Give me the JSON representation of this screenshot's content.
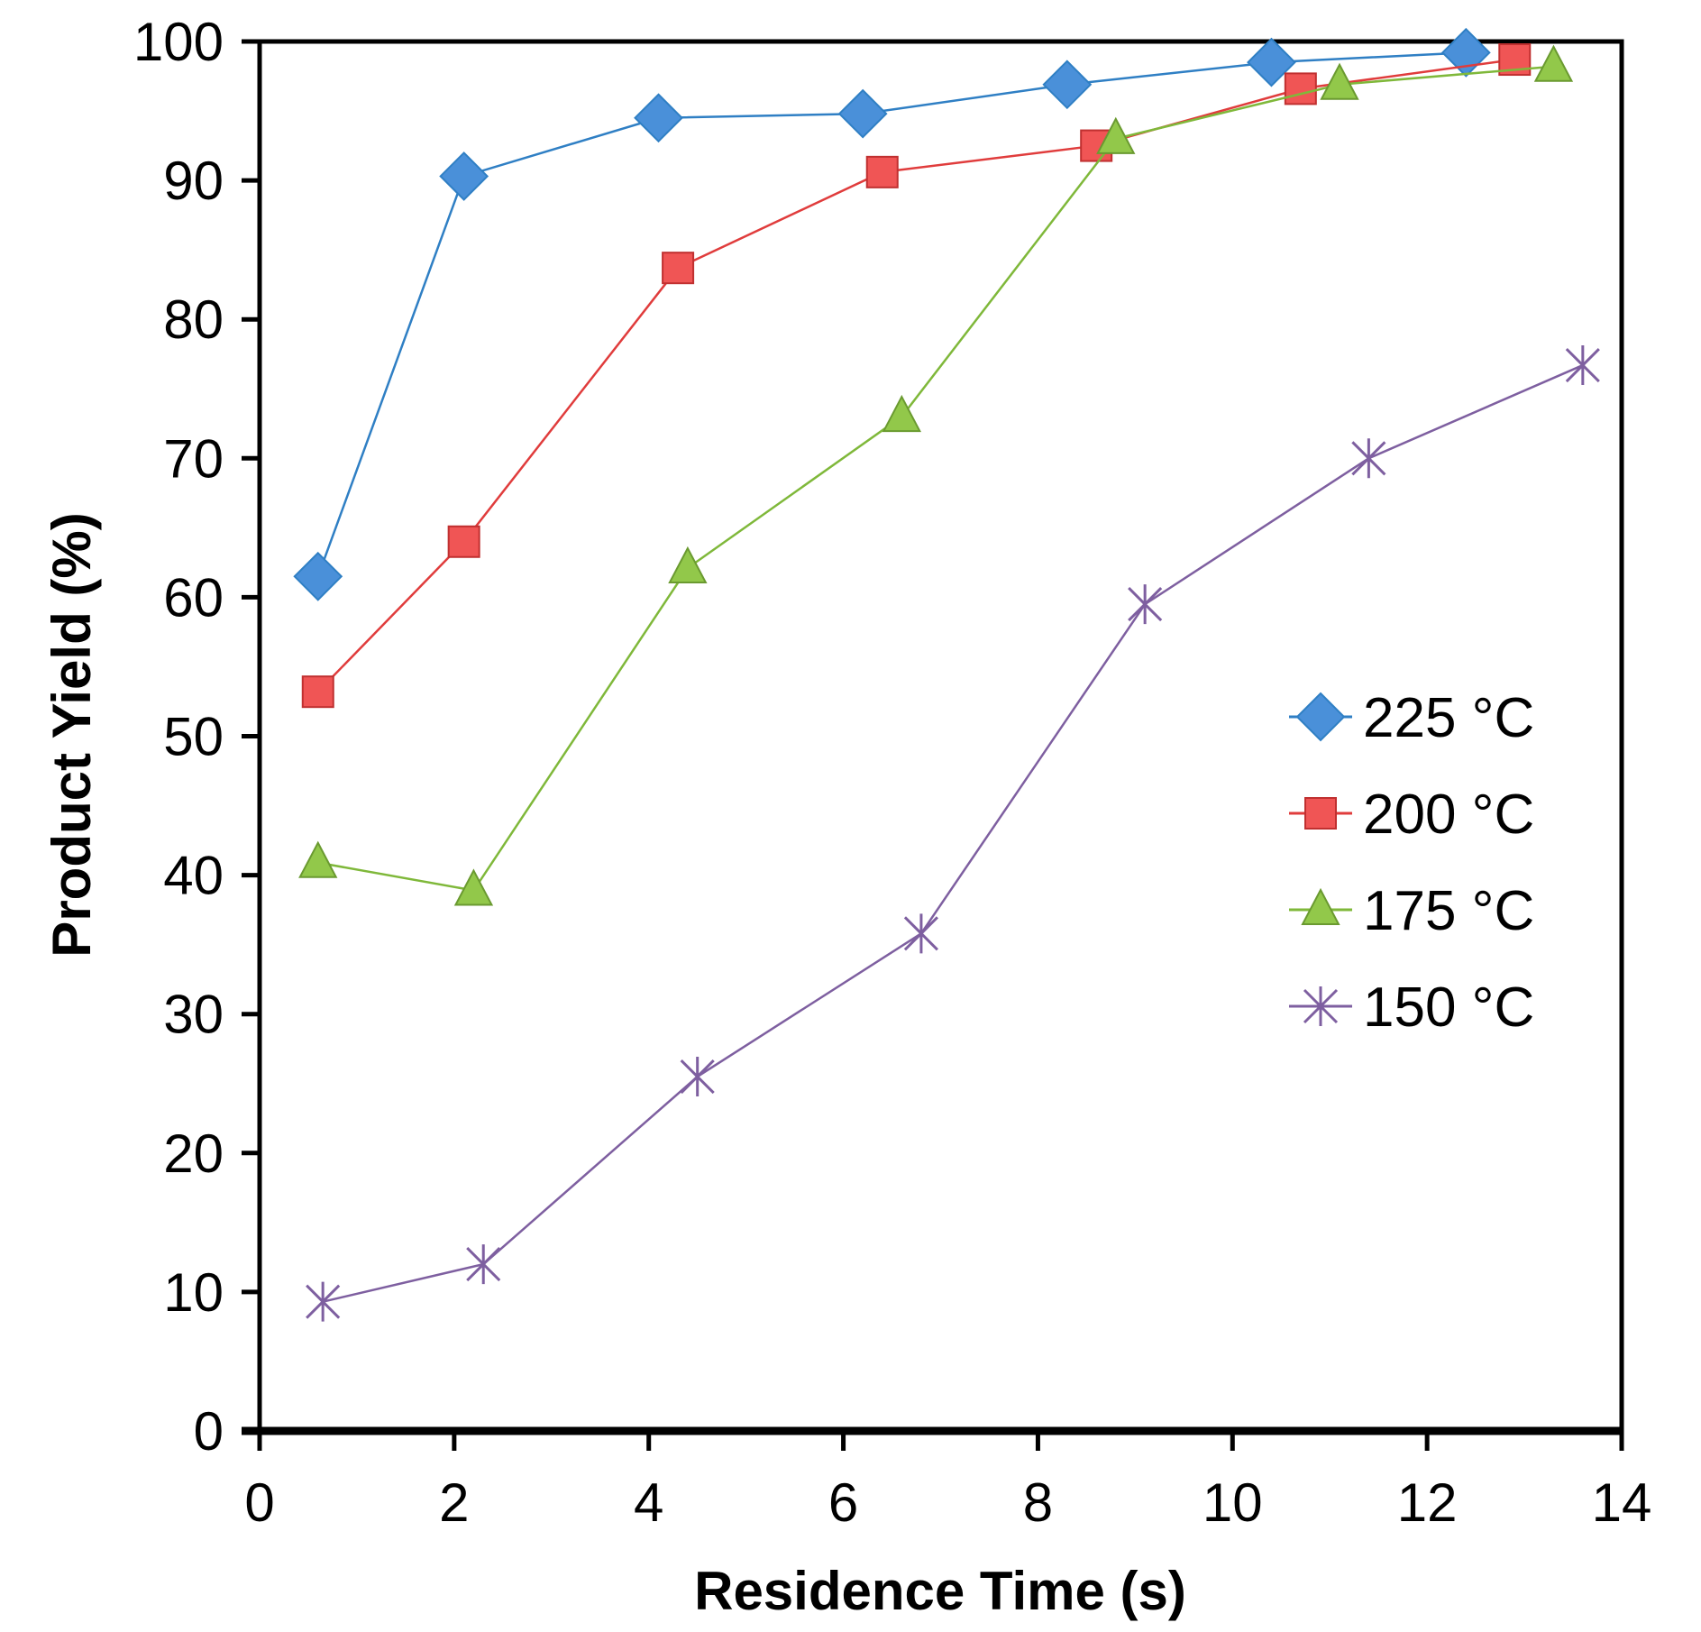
{
  "chart_data": {
    "type": "line",
    "title": "",
    "xlabel": "Residence Time (s)",
    "ylabel": "Product Yield (%)",
    "xlim": [
      0,
      14
    ],
    "ylim": [
      0,
      100
    ],
    "xticks": [
      0,
      2,
      4,
      6,
      8,
      10,
      12,
      14
    ],
    "yticks": [
      0,
      10,
      20,
      30,
      40,
      50,
      60,
      70,
      80,
      90,
      100
    ],
    "grid": false,
    "legend_position": "center-right",
    "series": [
      {
        "name": "225 °C",
        "marker": "diamond",
        "color": "#2f7fc4",
        "fill": "#4a90d9",
        "x": [
          0.6,
          2.1,
          4.1,
          6.2,
          8.3,
          10.4,
          12.4
        ],
        "y": [
          61.5,
          90.3,
          94.5,
          94.8,
          96.9,
          98.5,
          99.2
        ]
      },
      {
        "name": "200 °C",
        "marker": "square",
        "color": "#e03c3c",
        "fill": "#f05555",
        "x": [
          0.6,
          2.1,
          4.3,
          6.4,
          8.6,
          10.7,
          12.9
        ],
        "y": [
          53.2,
          64.0,
          83.7,
          90.6,
          92.5,
          96.6,
          98.7
        ]
      },
      {
        "name": "175 °C",
        "marker": "triangle",
        "color": "#7fb83a",
        "fill": "#92c84a",
        "x": [
          0.6,
          2.2,
          4.4,
          6.6,
          8.8,
          11.1,
          13.3
        ],
        "y": [
          40.9,
          38.9,
          62.1,
          73.0,
          93.0,
          96.9,
          98.2
        ]
      },
      {
        "name": "150 °C",
        "marker": "x",
        "color": "#7e5fa0",
        "fill": "#7e5fa0",
        "x": [
          0.65,
          2.3,
          4.5,
          6.8,
          9.1,
          11.4,
          13.6
        ],
        "y": [
          9.3,
          12.0,
          25.5,
          35.8,
          59.5,
          70.0,
          76.7
        ]
      }
    ]
  }
}
